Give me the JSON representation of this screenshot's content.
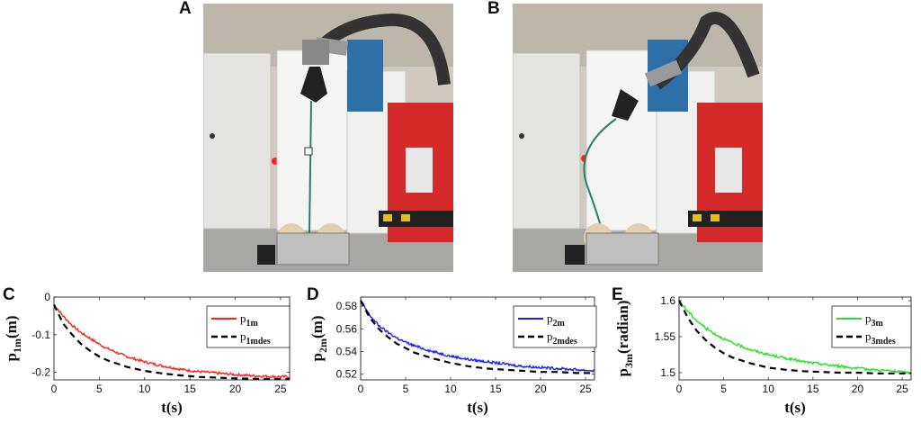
{
  "panels": {
    "A": "A",
    "B": "B",
    "C": "C",
    "D": "D",
    "E": "E"
  },
  "colors": {
    "red": "#ff1f1f",
    "blue": "#1a1aff",
    "green": "#1ee61e",
    "des": "#000000"
  },
  "chart_data": [
    {
      "type": "line",
      "panel": "C",
      "xlabel": "t(s)",
      "ylabel_main": "p",
      "ylabel_sub": "1m",
      "ylabel_unit": "(m)",
      "xlim": [
        0,
        26
      ],
      "ylim": [
        -0.22,
        0.0
      ],
      "xticks": [
        0,
        5,
        10,
        15,
        20,
        25
      ],
      "xtick_labels": [
        "0",
        "5",
        "10",
        "15",
        "20",
        "25"
      ],
      "yticks": [
        0,
        -0.1,
        -0.2
      ],
      "ytick_labels": [
        "0",
        "-0.1",
        "-0.2"
      ],
      "legend_position": "top-right",
      "series": [
        {
          "name": "p",
          "sub": "1m",
          "style": "solid",
          "color": "#ff1f1f",
          "x": [
            0,
            1,
            2,
            3,
            4,
            5,
            6,
            8,
            10,
            12,
            14,
            16,
            18,
            20,
            22,
            24,
            26
          ],
          "values": [
            -0.02,
            -0.05,
            -0.075,
            -0.095,
            -0.11,
            -0.125,
            -0.138,
            -0.158,
            -0.172,
            -0.183,
            -0.192,
            -0.198,
            -0.202,
            -0.206,
            -0.209,
            -0.211,
            -0.212
          ]
        },
        {
          "name": "p",
          "sub": "1mdes",
          "style": "dashed",
          "color": "#000000",
          "x": [
            0,
            1,
            2,
            3,
            4,
            5,
            6,
            8,
            10,
            12,
            14,
            16,
            18,
            20,
            22,
            24,
            26
          ],
          "values": [
            -0.02,
            -0.07,
            -0.1,
            -0.125,
            -0.143,
            -0.158,
            -0.169,
            -0.185,
            -0.196,
            -0.203,
            -0.208,
            -0.212,
            -0.214,
            -0.216,
            -0.217,
            -0.218,
            -0.218
          ]
        }
      ]
    },
    {
      "type": "line",
      "panel": "D",
      "xlabel": "t(s)",
      "ylabel_main": "p",
      "ylabel_sub": "2m",
      "ylabel_unit": "(m)",
      "xlim": [
        0,
        26
      ],
      "ylim": [
        0.515,
        0.588
      ],
      "xticks": [
        0,
        5,
        10,
        15,
        20,
        25
      ],
      "xtick_labels": [
        "0",
        "5",
        "10",
        "15",
        "20",
        "25"
      ],
      "yticks": [
        0.52,
        0.54,
        0.56,
        0.58
      ],
      "ytick_labels": [
        "0.52",
        "0.54",
        "0.56",
        "0.58"
      ],
      "legend_position": "top-right",
      "series": [
        {
          "name": "p",
          "sub": "2m",
          "style": "solid",
          "color": "#1a1aff",
          "x": [
            0,
            1,
            2,
            3,
            4,
            5,
            6,
            8,
            10,
            12,
            14,
            16,
            18,
            20,
            22,
            24,
            26
          ],
          "values": [
            0.585,
            0.572,
            0.563,
            0.557,
            0.552,
            0.548,
            0.545,
            0.54,
            0.536,
            0.533,
            0.531,
            0.529,
            0.527,
            0.526,
            0.525,
            0.524,
            0.523
          ]
        },
        {
          "name": "p",
          "sub": "2mdes",
          "style": "dashed",
          "color": "#000000",
          "x": [
            0,
            1,
            2,
            3,
            4,
            5,
            6,
            8,
            10,
            12,
            14,
            16,
            18,
            20,
            22,
            24,
            26
          ],
          "values": [
            0.585,
            0.57,
            0.56,
            0.553,
            0.547,
            0.543,
            0.539,
            0.534,
            0.53,
            0.527,
            0.525,
            0.524,
            0.523,
            0.522,
            0.522,
            0.521,
            0.521
          ]
        }
      ]
    },
    {
      "type": "line",
      "panel": "E",
      "xlabel": "t(s)",
      "ylabel_main": "p",
      "ylabel_sub": "3m",
      "ylabel_unit": "(radian)",
      "xlim": [
        0,
        26
      ],
      "ylim": [
        1.49,
        1.605
      ],
      "xticks": [
        0,
        5,
        10,
        15,
        20,
        25
      ],
      "xtick_labels": [
        "0",
        "5",
        "10",
        "15",
        "20",
        "25"
      ],
      "yticks": [
        1.5,
        1.55,
        1.6
      ],
      "ytick_labels": [
        "1.5",
        "1.55",
        "1.6"
      ],
      "legend_position": "top-right",
      "series": [
        {
          "name": "p",
          "sub": "3m",
          "style": "solid",
          "color": "#1ee61e",
          "x": [
            0,
            1,
            2,
            3,
            4,
            5,
            6,
            8,
            10,
            12,
            14,
            16,
            18,
            20,
            22,
            24,
            26
          ],
          "values": [
            1.6,
            1.585,
            1.572,
            1.562,
            1.554,
            1.547,
            1.541,
            1.532,
            1.525,
            1.52,
            1.515,
            1.512,
            1.509,
            1.506,
            1.504,
            1.502,
            1.5
          ]
        },
        {
          "name": "p",
          "sub": "3mdes",
          "style": "dashed",
          "color": "#000000",
          "x": [
            0,
            1,
            2,
            3,
            4,
            5,
            6,
            8,
            10,
            12,
            14,
            16,
            18,
            20,
            22,
            24,
            26
          ],
          "values": [
            1.6,
            1.576,
            1.558,
            1.545,
            1.535,
            1.527,
            1.521,
            1.513,
            1.507,
            1.504,
            1.502,
            1.501,
            1.5,
            1.5,
            1.499,
            1.499,
            1.499
          ]
        }
      ]
    }
  ]
}
